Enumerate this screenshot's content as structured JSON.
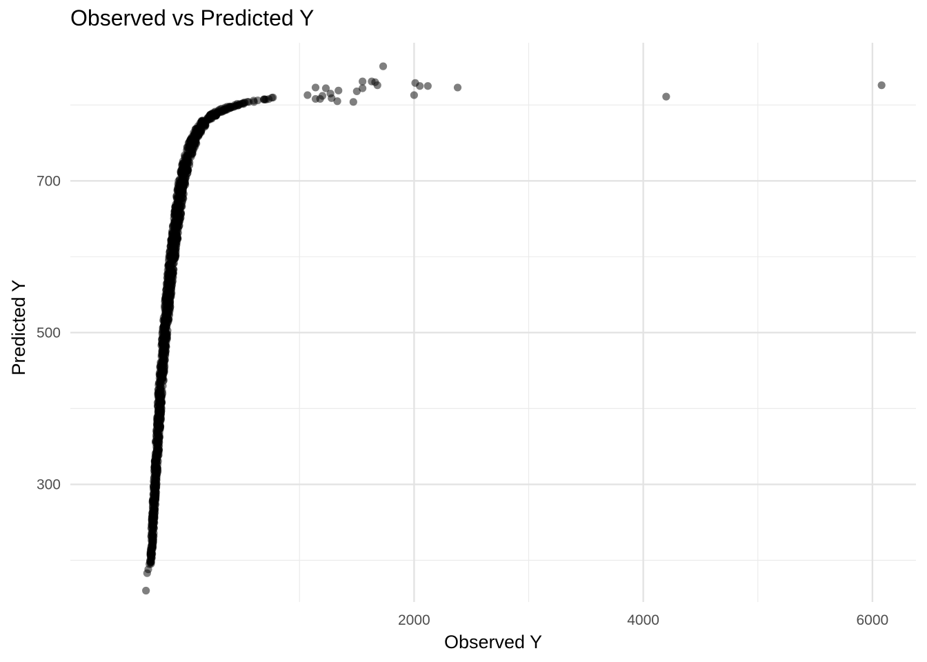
{
  "chart_data": {
    "type": "scatter",
    "title": "Observed vs Predicted Y",
    "xlabel": "Observed Y",
    "ylabel": "Predicted Y",
    "xlim": [
      -1000,
      6380
    ],
    "ylim": [
      145,
      882
    ],
    "x_ticks": [
      2000,
      4000,
      6000
    ],
    "x_tick_labels": [
      "2000",
      "4000",
      "6000"
    ],
    "x_minor_ticks": [
      1000,
      3000,
      5000
    ],
    "y_ticks": [
      300,
      500,
      700
    ],
    "y_tick_labels": [
      "300",
      "500",
      "700"
    ],
    "y_minor_ticks": [
      200,
      400,
      600,
      800
    ],
    "grid": true,
    "point_color": "#000000",
    "point_opacity": 0.5,
    "trend_points": [
      [
        -300,
        180
      ],
      [
        -290,
        215
      ],
      [
        -275,
        260
      ],
      [
        -260,
        300
      ],
      [
        -245,
        340
      ],
      [
        -230,
        380
      ],
      [
        -215,
        420
      ],
      [
        -195,
        460
      ],
      [
        -175,
        500
      ],
      [
        -150,
        540
      ],
      [
        -125,
        580
      ],
      [
        -95,
        620
      ],
      [
        -60,
        660
      ],
      [
        -25,
        700
      ],
      [
        20,
        730
      ],
      [
        90,
        760
      ],
      [
        180,
        780
      ],
      [
        300,
        792
      ],
      [
        450,
        800
      ],
      [
        600,
        805
      ],
      [
        800,
        810
      ],
      [
        1000,
        812
      ]
    ],
    "points": [
      {
        "x": -340,
        "y": 160
      },
      {
        "x": -330,
        "y": 183
      },
      {
        "x": -320,
        "y": 188
      },
      {
        "x": -310,
        "y": 195
      },
      {
        "x": 1070,
        "y": 813
      },
      {
        "x": 1140,
        "y": 808
      },
      {
        "x": 1140,
        "y": 823
      },
      {
        "x": 1200,
        "y": 812
      },
      {
        "x": 1230,
        "y": 822
      },
      {
        "x": 1270,
        "y": 815
      },
      {
        "x": 1280,
        "y": 809
      },
      {
        "x": 1180,
        "y": 808
      },
      {
        "x": 1330,
        "y": 805
      },
      {
        "x": 1340,
        "y": 819
      },
      {
        "x": 1470,
        "y": 804
      },
      {
        "x": 1500,
        "y": 818
      },
      {
        "x": 1550,
        "y": 822
      },
      {
        "x": 1550,
        "y": 831
      },
      {
        "x": 1630,
        "y": 831
      },
      {
        "x": 1660,
        "y": 830
      },
      {
        "x": 1680,
        "y": 826
      },
      {
        "x": 1730,
        "y": 851
      },
      {
        "x": 2000,
        "y": 813
      },
      {
        "x": 2010,
        "y": 829
      },
      {
        "x": 2050,
        "y": 825
      },
      {
        "x": 2120,
        "y": 825
      },
      {
        "x": 2380,
        "y": 823
      },
      {
        "x": 4200,
        "y": 811
      },
      {
        "x": 6080,
        "y": 826
      }
    ]
  }
}
